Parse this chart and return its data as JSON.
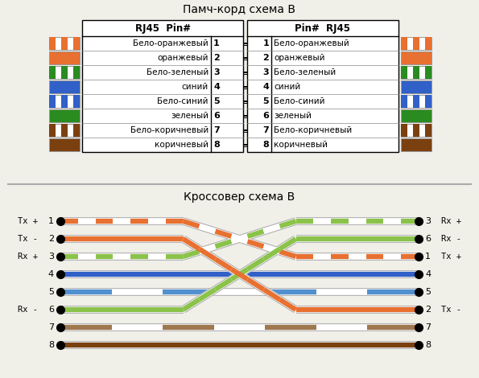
{
  "title1": "Памч-корд схема В",
  "title2": "Кроссовер схема В",
  "patch_pins": [
    {
      "pin": 1,
      "label": "Бело-оранжевый",
      "base": "#FFFFFF",
      "stripe": "#E87030",
      "solid": false
    },
    {
      "pin": 2,
      "label": "оранжевый",
      "base": "#E87030",
      "stripe": null,
      "solid": true
    },
    {
      "pin": 3,
      "label": "Бело-зеленый",
      "base": "#FFFFFF",
      "stripe": "#2A8C20",
      "solid": false
    },
    {
      "pin": 4,
      "label": "синий",
      "base": "#3060C8",
      "stripe": null,
      "solid": true
    },
    {
      "pin": 5,
      "label": "Бело-синий",
      "base": "#FFFFFF",
      "stripe": "#3060C8",
      "solid": false
    },
    {
      "pin": 6,
      "label": "зеленый",
      "base": "#2A8C20",
      "stripe": null,
      "solid": true
    },
    {
      "pin": 7,
      "label": "Бело-коричневый",
      "base": "#FFFFFF",
      "stripe": "#7B4010",
      "solid": false
    },
    {
      "pin": 8,
      "label": "коричневый",
      "base": "#7B4010",
      "stripe": null,
      "solid": true
    }
  ],
  "crossover_map": [
    3,
    6,
    1,
    4,
    5,
    2,
    7,
    8
  ],
  "left_labels": [
    "Tx +",
    "Tx -",
    "Rx +",
    "",
    "",
    "Rx -",
    "",
    ""
  ],
  "right_labels": [
    "Rx +",
    "Rx -",
    "Tx +",
    "",
    "",
    "Tx -",
    "",
    ""
  ],
  "wire_colors": [
    "#E87030",
    "#E87030",
    "#8BC34A",
    "#3060C8",
    "#5090D0",
    "#8BC34A",
    "#A07850",
    "#7B4010"
  ],
  "wire_is_striped": [
    true,
    false,
    true,
    false,
    true,
    false,
    true,
    false
  ],
  "bg_color": "#F0EFE8",
  "font_size": 8,
  "title_font_size": 10
}
